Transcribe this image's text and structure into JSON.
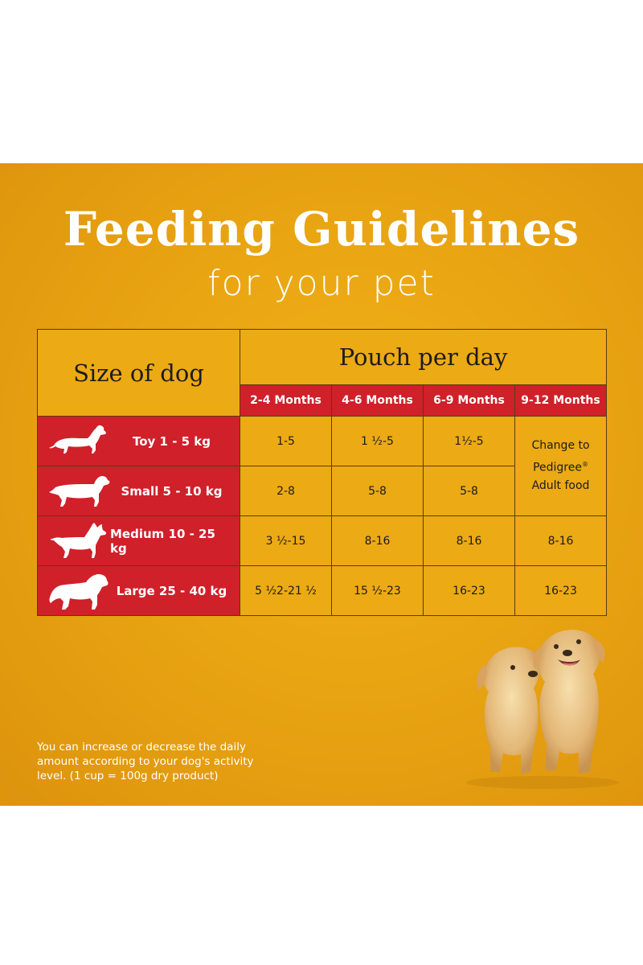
{
  "header": {
    "title": "Feeding Guidelines",
    "subtitle": "for your pet"
  },
  "table": {
    "size_header": "Size of dog",
    "pouch_header": "Pouch per day",
    "age_columns": [
      "2-4 Months",
      "4-6 Months",
      "6-9 Months",
      "9-12 Months"
    ],
    "rows": [
      {
        "size": "Toy 1 - 5 kg",
        "icon": "dachshund-small-icon",
        "values": [
          "1-5",
          "1 ½-5",
          "1½-5"
        ]
      },
      {
        "size": "Small 5 - 10 kg",
        "icon": "dachshund-icon",
        "values": [
          "2-8",
          "5-8",
          "5-8"
        ]
      },
      {
        "size": "Medium 10 - 25 kg",
        "icon": "medium-dog-icon",
        "values": [
          "3 ½-15",
          "8-16",
          "8-16",
          "8-16"
        ]
      },
      {
        "size": "Large 25 - 40 kg",
        "icon": "large-dog-icon",
        "values": [
          "5 ½2-21 ½",
          "15 ½-23",
          "16-23",
          "16-23"
        ]
      }
    ],
    "change_note": {
      "line1": "Change to",
      "line2": "Pedigree",
      "mark": "®",
      "line3": "Adult food"
    }
  },
  "footnote": "You can increase or decrease the daily amount according to your dog's activity level. (1 cup = 100g dry product)",
  "colors": {
    "background": "#e9a512",
    "red": "#d0202a",
    "cell": "#ecaa14"
  }
}
